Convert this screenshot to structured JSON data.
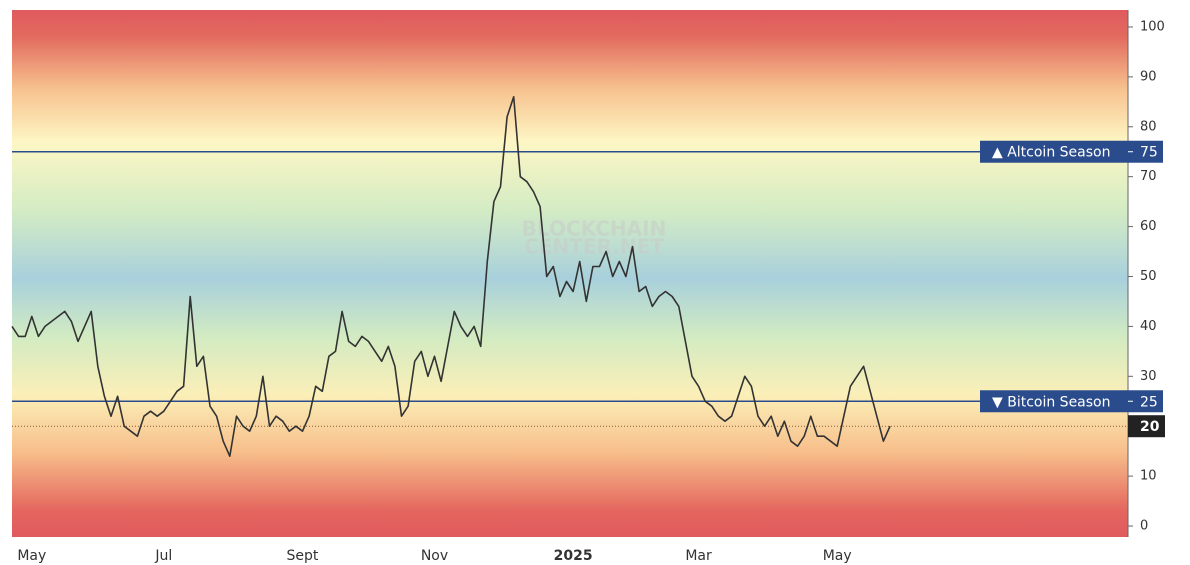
{
  "chart_data": {
    "type": "line",
    "watermark": [
      "BLOCKCHAIN",
      "CENTER.NET"
    ],
    "categories": [
      null,
      null,
      null,
      "May",
      null,
      null,
      null,
      null,
      null,
      null,
      null,
      null,
      null,
      null,
      null,
      null,
      null,
      null,
      null,
      null,
      null,
      null,
      null,
      "Jul",
      null,
      null,
      null,
      null,
      null,
      null,
      null,
      null,
      null,
      null,
      null,
      null,
      null,
      null,
      null,
      null,
      null,
      null,
      null,
      null,
      "Sept",
      null,
      null,
      null,
      null,
      null,
      null,
      null,
      null,
      null,
      null,
      null,
      null,
      null,
      null,
      null,
      null,
      null,
      null,
      null,
      "Nov",
      null,
      null,
      null,
      null,
      null,
      null,
      null,
      null,
      null,
      null,
      null,
      null,
      null,
      null,
      null,
      null,
      null,
      null,
      null,
      null,
      "2025",
      null,
      null,
      null,
      null,
      null,
      null,
      null,
      null,
      null,
      null,
      null,
      null,
      null,
      null,
      null,
      null,
      null,
      null,
      "Mar",
      null,
      null,
      null,
      null,
      null,
      null,
      null,
      null,
      null,
      null,
      null,
      null,
      null,
      null,
      null,
      null,
      null,
      null,
      null,
      null,
      "May",
      null,
      null,
      null,
      null,
      null,
      null,
      null,
      null
    ],
    "values": [
      40,
      38,
      38,
      42,
      38,
      40,
      41,
      42,
      43,
      41,
      37,
      40,
      43,
      32,
      26,
      22,
      26,
      20,
      19,
      18,
      22,
      23,
      22,
      23,
      25,
      27,
      28,
      46,
      32,
      34,
      24,
      22,
      17,
      14,
      22,
      20,
      19,
      22,
      30,
      20,
      22,
      21,
      19,
      20,
      19,
      22,
      28,
      27,
      34,
      35,
      43,
      37,
      36,
      38,
      37,
      35,
      33,
      36,
      32,
      22,
      24,
      33,
      35,
      30,
      34,
      29,
      36,
      43,
      40,
      38,
      40,
      36,
      53,
      65,
      68,
      82,
      86,
      70,
      69,
      67,
      64,
      50,
      52,
      46,
      49,
      47,
      53,
      45,
      52,
      52,
      55,
      50,
      53,
      50,
      56,
      47,
      48,
      44,
      46,
      47,
      46,
      44,
      37,
      30,
      28,
      25,
      24,
      22,
      21,
      22,
      26,
      30,
      28,
      22,
      20,
      22,
      18,
      21,
      17,
      16,
      18,
      22,
      18,
      18,
      17,
      16,
      22,
      28,
      30,
      32,
      27,
      22,
      17,
      20
    ],
    "color": "#333333",
    "ylim": [
      -2.2,
      103.4
    ],
    "yticks": [
      0,
      10,
      20,
      30,
      40,
      50,
      60,
      70,
      80,
      90,
      100
    ],
    "reference_lines": [
      {
        "label": "▲ Altcoin Season",
        "value": 75,
        "color": "#2b4c8c"
      },
      {
        "label": "▼ Bitcoin Season",
        "value": 25,
        "color": "#2b4c8c"
      }
    ],
    "current_color": "#222222"
  }
}
